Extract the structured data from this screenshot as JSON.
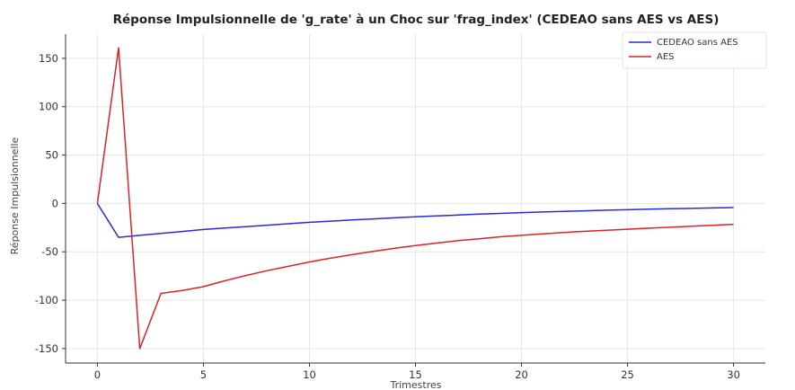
{
  "chart_data": {
    "type": "line",
    "title": "Réponse Impulsionnelle de 'g_rate' à un Choc sur 'frag_index' (CEDEAO sans AES vs AES)",
    "xlabel": "Trimestres",
    "ylabel": "Réponse Impulsionnelle",
    "xlim": [
      -1.5,
      31.5
    ],
    "ylim": [
      -165,
      175
    ],
    "xticks": [
      0,
      5,
      10,
      15,
      20,
      25,
      30
    ],
    "yticks": [
      -150,
      -100,
      -50,
      0,
      50,
      100,
      150
    ],
    "grid": true,
    "legend_position": "top-right",
    "series": [
      {
        "name": "CEDEAO sans AES",
        "color": "#2a2ad6",
        "x": [
          0,
          1,
          2,
          3,
          4,
          5,
          6,
          7,
          8,
          9,
          10,
          11,
          12,
          13,
          14,
          15,
          16,
          17,
          18,
          19,
          20,
          21,
          22,
          23,
          24,
          25,
          26,
          27,
          28,
          29,
          30
        ],
        "y": [
          0,
          -35,
          -33,
          -31,
          -29,
          -27,
          -25.5,
          -24,
          -22.5,
          -21,
          -19.5,
          -18.3,
          -17.1,
          -16,
          -14.9,
          -13.9,
          -12.9,
          -12,
          -11.1,
          -10.3,
          -9.5,
          -8.8,
          -8.2,
          -7.6,
          -7,
          -6.5,
          -6,
          -5.5,
          -5.1,
          -4.7,
          -4.3
        ]
      },
      {
        "name": "AES",
        "color": "#d8232a",
        "x": [
          0,
          1,
          2,
          3,
          4,
          5,
          6,
          7,
          8,
          9,
          10,
          11,
          12,
          13,
          14,
          15,
          16,
          17,
          18,
          19,
          20,
          21,
          22,
          23,
          24,
          25,
          26,
          27,
          28,
          29,
          30
        ],
        "y": [
          0,
          161,
          -150,
          -93,
          -90,
          -86,
          -80,
          -74.5,
          -69.5,
          -65,
          -60.5,
          -56.5,
          -53,
          -49.5,
          -46.5,
          -43.5,
          -41,
          -38.5,
          -36.5,
          -34.5,
          -33,
          -31.5,
          -30,
          -28.8,
          -27.7,
          -26.7,
          -25.6,
          -24.6,
          -23.6,
          -22.6,
          -21.6
        ]
      }
    ]
  }
}
